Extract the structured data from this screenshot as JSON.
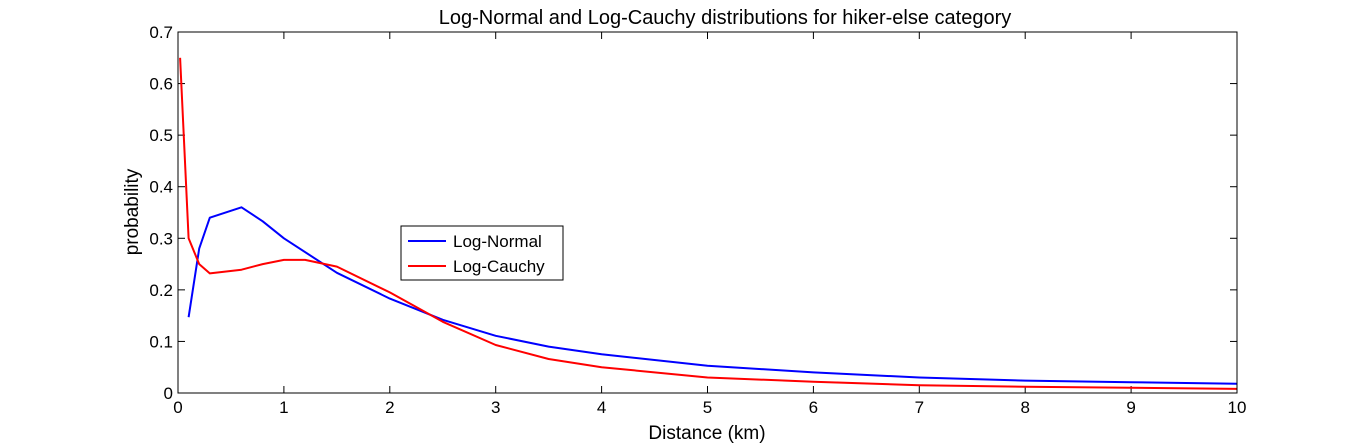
{
  "chart_data": {
    "type": "line",
    "title": "Log-Normal and Log-Cauchy distributions for hiker-else category",
    "xlabel": "Distance (km)",
    "ylabel": "probability",
    "xlim": [
      0,
      10
    ],
    "ylim": [
      0,
      0.7
    ],
    "xticks": [
      "0",
      "1",
      "2",
      "3",
      "4",
      "5",
      "6",
      "7",
      "8",
      "9",
      "10"
    ],
    "yticks": [
      "0",
      "0.1",
      "0.2",
      "0.3",
      "0.4",
      "0.5",
      "0.6",
      "0.7"
    ],
    "grid": false,
    "legend_position": "center-left",
    "series": [
      {
        "name": "Log-Normal",
        "color": "#0000ff",
        "x": [
          0.1,
          0.2,
          0.3,
          0.6,
          0.8,
          1.0,
          1.5,
          2.0,
          2.5,
          3.0,
          3.5,
          4.0,
          5.0,
          6.0,
          7.0,
          8.0,
          9.0,
          10.0
        ],
        "y": [
          0.147,
          0.28,
          0.34,
          0.36,
          0.333,
          0.3,
          0.233,
          0.183,
          0.142,
          0.111,
          0.09,
          0.075,
          0.053,
          0.04,
          0.03,
          0.024,
          0.021,
          0.018
        ]
      },
      {
        "name": "Log-Cauchy",
        "color": "#ff0000",
        "x": [
          0.02,
          0.1,
          0.2,
          0.3,
          0.6,
          0.8,
          1.0,
          1.2,
          1.5,
          2.0,
          2.5,
          3.0,
          3.5,
          4.0,
          5.0,
          6.0,
          7.0,
          8.0,
          9.0,
          10.0
        ],
        "y": [
          0.65,
          0.3,
          0.25,
          0.232,
          0.239,
          0.25,
          0.258,
          0.258,
          0.245,
          0.195,
          0.138,
          0.093,
          0.066,
          0.05,
          0.03,
          0.022,
          0.015,
          0.012,
          0.01,
          0.008
        ]
      }
    ]
  }
}
